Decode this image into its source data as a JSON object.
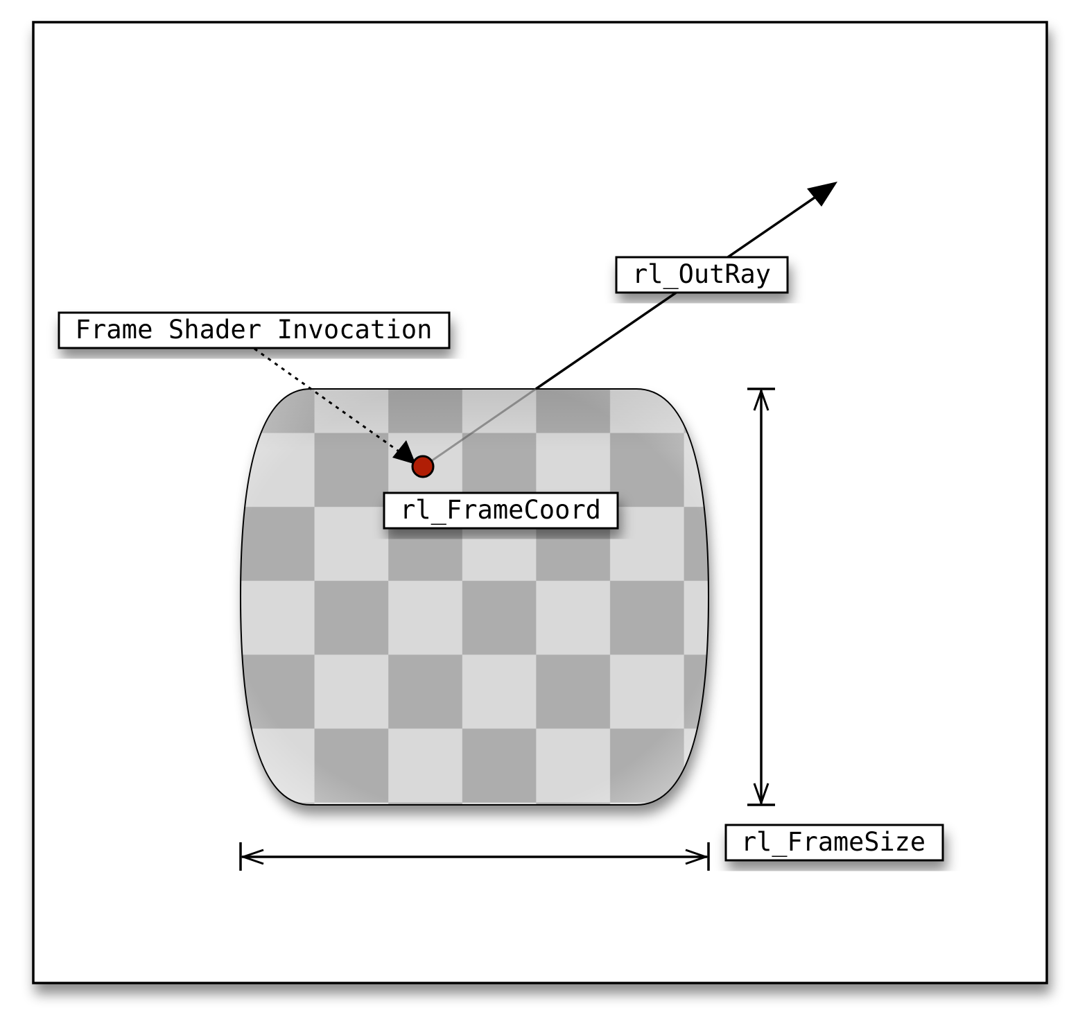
{
  "labels": {
    "invocation": "Frame Shader Invocation",
    "out_ray": "rl_OutRay",
    "frame_coord": "rl_FrameCoord",
    "frame_size": "rl_FrameSize"
  },
  "colors": {
    "checker_dark": "#adadad",
    "checker_light": "#d9d9d9",
    "point": "#b01e05",
    "stroke": "#000000",
    "background": "#ffffff"
  }
}
